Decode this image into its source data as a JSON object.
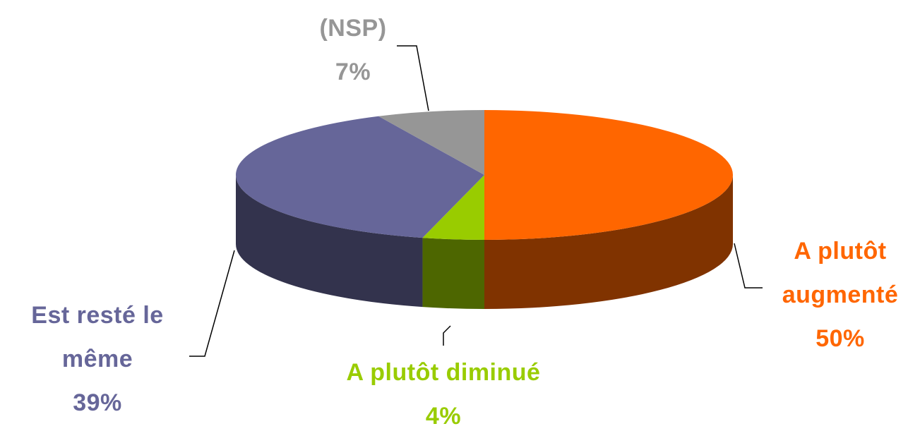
{
  "chart_data": {
    "type": "pie",
    "categories": [
      "A plutôt augmenté",
      "A plutôt diminué",
      "Est resté le même",
      "(NSP)"
    ],
    "values": [
      50,
      4,
      39,
      7
    ],
    "value_labels": [
      "50%",
      "4%",
      "39%",
      "7%"
    ],
    "colors": [
      "#ff6600",
      "#99cc00",
      "#666699",
      "#969696"
    ],
    "side_colors": [
      "#803300",
      "#4d6600",
      "#33334d",
      "#4b4b4b"
    ]
  }
}
